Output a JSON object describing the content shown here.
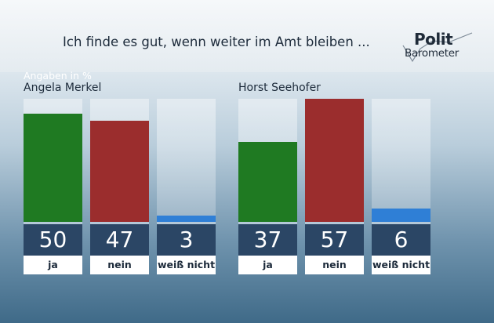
{
  "header": {
    "title": "Ich finde es gut, wenn weiter im Amt bleiben ...",
    "logo_top": "Polit",
    "logo_bottom": "Barometer"
  },
  "unit_label": "Angaben in %",
  "colors": {
    "ja": "#1f7a22",
    "nein": "#9b2d2d",
    "weiss_nicht": "#2f7fd6"
  },
  "chart_data": [
    {
      "type": "bar",
      "title": "Angela Merkel",
      "categories": [
        "ja",
        "nein",
        "weiß nicht"
      ],
      "values": [
        50,
        47,
        3
      ],
      "ylim": [
        0,
        57
      ]
    },
    {
      "type": "bar",
      "title": "Horst Seehofer",
      "categories": [
        "ja",
        "nein",
        "weiß nicht"
      ],
      "values": [
        37,
        57,
        6
      ],
      "ylim": [
        0,
        57
      ]
    }
  ]
}
